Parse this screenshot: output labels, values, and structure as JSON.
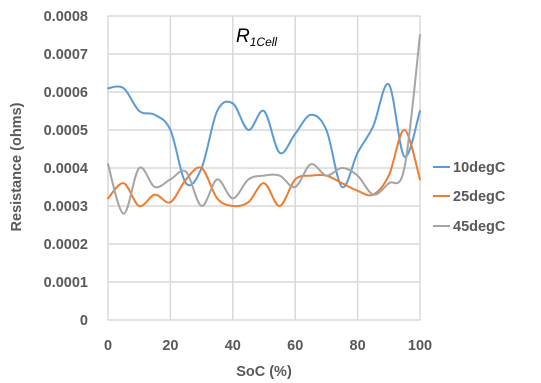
{
  "chart_data": {
    "type": "line",
    "title": "R",
    "title_subscript": "1Cell",
    "xlabel": "SoC (%)",
    "ylabel": "Resistance (ohms)",
    "xlim": [
      0,
      100
    ],
    "ylim": [
      0,
      0.0008
    ],
    "x_ticks": [
      "0",
      "20",
      "40",
      "60",
      "80",
      "100"
    ],
    "y_ticks": [
      "0",
      "0.0001",
      "0.0002",
      "0.0003",
      "0.0004",
      "0.0005",
      "0.0006",
      "0.0007",
      "0.0008"
    ],
    "grid": true,
    "legend_position": "right",
    "series": [
      {
        "name": "10degC",
        "color": "#5B9BD5",
        "x": [
          0,
          5,
          10,
          15,
          20,
          25,
          30,
          35,
          40,
          45,
          50,
          55,
          60,
          65,
          70,
          75,
          80,
          85,
          90,
          95,
          100
        ],
        "y": [
          0.00061,
          0.00061,
          0.00055,
          0.00054,
          0.0005,
          0.00036,
          0.0004,
          0.00055,
          0.00057,
          0.0005,
          0.00055,
          0.00044,
          0.00049,
          0.00054,
          0.0005,
          0.00035,
          0.00044,
          0.00051,
          0.00062,
          0.00043,
          0.00055
        ]
      },
      {
        "name": "25degC",
        "color": "#ED7D31",
        "x": [
          0,
          5,
          10,
          15,
          20,
          25,
          30,
          35,
          40,
          45,
          50,
          55,
          60,
          65,
          70,
          75,
          80,
          85,
          90,
          95,
          100
        ],
        "y": [
          0.00032,
          0.00036,
          0.0003,
          0.00033,
          0.00031,
          0.00037,
          0.0004,
          0.00032,
          0.0003,
          0.00031,
          0.00036,
          0.0003,
          0.00037,
          0.00038,
          0.00038,
          0.00036,
          0.00034,
          0.00033,
          0.00038,
          0.0005,
          0.00037
        ]
      },
      {
        "name": "45degC",
        "color": "#A5A5A5",
        "x": [
          0,
          5,
          10,
          15,
          20,
          25,
          30,
          35,
          40,
          45,
          50,
          55,
          60,
          65,
          70,
          75,
          80,
          85,
          90,
          95,
          100
        ],
        "y": [
          0.00041,
          0.00028,
          0.0004,
          0.00035,
          0.00037,
          0.00039,
          0.0003,
          0.00037,
          0.00032,
          0.00037,
          0.00038,
          0.00038,
          0.00035,
          0.00041,
          0.00038,
          0.0004,
          0.00038,
          0.00033,
          0.00036,
          0.0004,
          0.00075
        ]
      }
    ]
  }
}
